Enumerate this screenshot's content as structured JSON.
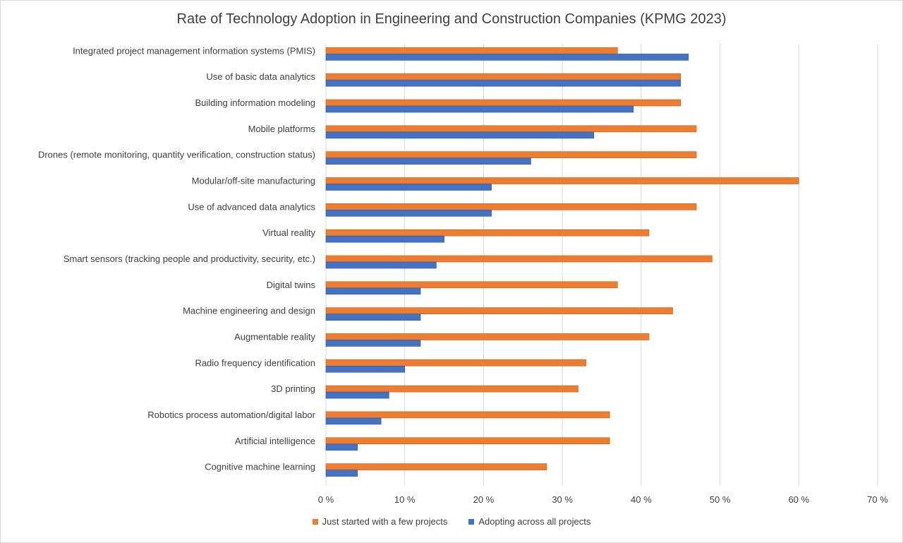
{
  "chart_data": {
    "type": "bar",
    "orientation": "horizontal",
    "title": "Rate of Technology Adoption in Engineering and Construction Companies  (KPMG 2023)",
    "xlabel": "",
    "ylabel": "",
    "xlim": [
      0,
      70
    ],
    "x_ticks": [
      0,
      10,
      20,
      30,
      40,
      50,
      60,
      70
    ],
    "tick_suffix": " %",
    "grid": true,
    "legend_position": "bottom",
    "categories": [
      "Integrated project management information systems (PMIS)",
      "Use of basic data analytics",
      "Building information modeling",
      "Mobile platforms",
      "Drones (remote monitoring, quantity verification, construction status)",
      "Modular/off-site manufacturing",
      "Use of advanced data analytics",
      "Virtual reality",
      "Smart sensors (tracking people and productivity, security, etc.)",
      "Digital twins",
      "Machine engineering and design",
      "Augmentable reality",
      "Radio frequency identification",
      "3D printing",
      "Robotics process automation/digital labor",
      "Artificial intelligence",
      "Cognitive machine learning"
    ],
    "series": [
      {
        "name": "Just started with a few projects",
        "color": "#ED7D31",
        "values": [
          37,
          45,
          45,
          47,
          47,
          60,
          47,
          41,
          49,
          37,
          44,
          41,
          33,
          32,
          36,
          36,
          28
        ]
      },
      {
        "name": "Adopting across all projects",
        "color": "#4472C4",
        "values": [
          46,
          45,
          39,
          34,
          26,
          21,
          21,
          15,
          14,
          12,
          12,
          12,
          10,
          8,
          7,
          4,
          4
        ]
      }
    ]
  }
}
